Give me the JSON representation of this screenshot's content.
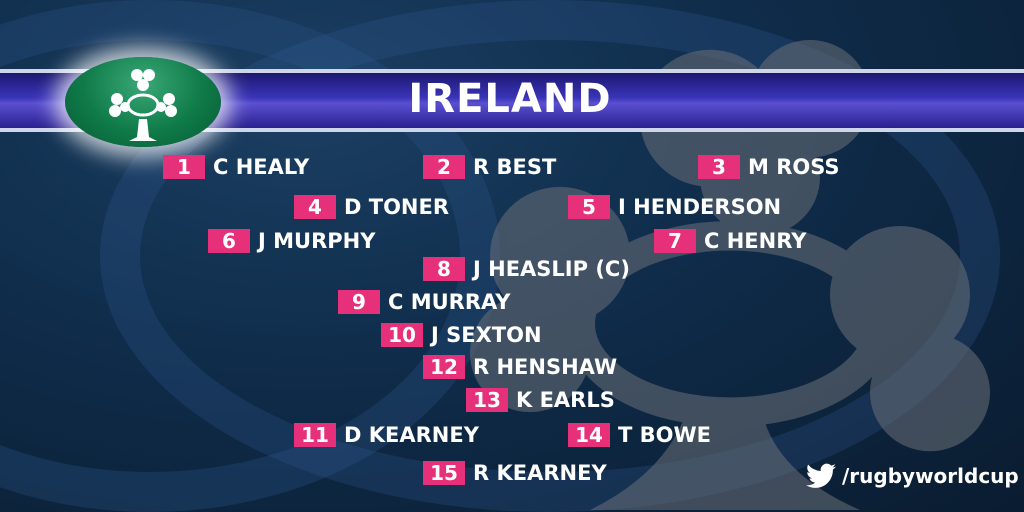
{
  "team": {
    "title": "IRELAND",
    "logo": "shamrock-rugby-ball-crest"
  },
  "players": [
    {
      "number": "1",
      "name": "C HEALY"
    },
    {
      "number": "2",
      "name": "R BEST"
    },
    {
      "number": "3",
      "name": "M ROSS"
    },
    {
      "number": "4",
      "name": "D TONER"
    },
    {
      "number": "5",
      "name": "I HENDERSON"
    },
    {
      "number": "6",
      "name": "J MURPHY"
    },
    {
      "number": "7",
      "name": "C HENRY"
    },
    {
      "number": "8",
      "name": "J HEASLIP (C)"
    },
    {
      "number": "9",
      "name": "C MURRAY"
    },
    {
      "number": "10",
      "name": "J SEXTON"
    },
    {
      "number": "12",
      "name": "R HENSHAW"
    },
    {
      "number": "13",
      "name": "K EARLS"
    },
    {
      "number": "11",
      "name": "D KEARNEY"
    },
    {
      "number": "14",
      "name": "T BOWE"
    },
    {
      "number": "15",
      "name": "R KEARNEY"
    }
  ],
  "social": {
    "icon": "twitter-icon",
    "handle": "/rugbyworldcup"
  },
  "colors": {
    "number_badge": "#e6307a",
    "band": "#3a34b8",
    "logo": "#0f7a48"
  }
}
